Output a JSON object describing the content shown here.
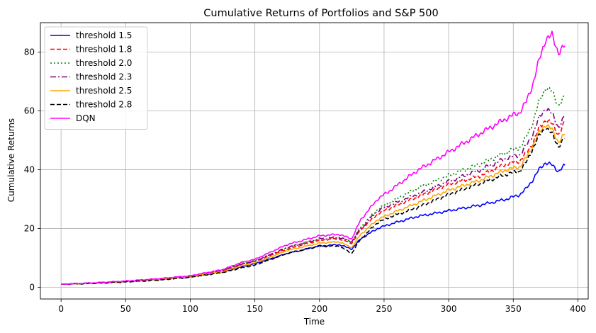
{
  "chart_data": {
    "type": "line",
    "title": "Cumulative Returns of Portfolios and S&P 500",
    "xlabel": "Time",
    "ylabel": "Cumulative Returns",
    "xlim": [
      -16,
      408
    ],
    "ylim": [
      -4,
      90
    ],
    "xticks": [
      0,
      50,
      100,
      150,
      200,
      250,
      300,
      350,
      400
    ],
    "yticks": [
      0,
      20,
      40,
      60,
      80
    ],
    "grid": true,
    "legend_position": "top-left",
    "series": [
      {
        "name": "threshold 1.5",
        "color": "#0000ff",
        "dash": "",
        "x": [
          0,
          25,
          50,
          75,
          100,
          125,
          140,
          150,
          175,
          200,
          215,
          225,
          232,
          245,
          255,
          275,
          300,
          325,
          345,
          355,
          360,
          365,
          370,
          375,
          380,
          385,
          390
        ],
        "y": [
          1,
          1.4,
          1.9,
          2.6,
          3.5,
          5.2,
          7.0,
          8.0,
          11.5,
          14.0,
          14.5,
          13.0,
          16.5,
          20.0,
          21.5,
          24.0,
          26.0,
          28.0,
          30.0,
          31.5,
          33.5,
          36.5,
          40.0,
          42.5,
          41.5,
          39.5,
          41.5
        ]
      },
      {
        "name": "threshold 1.8",
        "color": "#ff0000",
        "dash": "6,3",
        "x": [
          0,
          25,
          50,
          75,
          100,
          125,
          140,
          150,
          175,
          200,
          215,
          225,
          232,
          245,
          255,
          275,
          300,
          325,
          345,
          355,
          360,
          365,
          370,
          375,
          380,
          385,
          390
        ],
        "y": [
          1,
          1.4,
          2.0,
          2.7,
          3.7,
          5.6,
          7.8,
          8.8,
          13.0,
          16.0,
          16.5,
          15.0,
          19.5,
          25.0,
          27.0,
          30.5,
          35.0,
          38.0,
          42.0,
          43.0,
          45.5,
          49.0,
          54.0,
          57.0,
          55.5,
          52.0,
          56.0
        ]
      },
      {
        "name": "threshold 2.0",
        "color": "#008000",
        "dash": "2,3",
        "x": [
          0,
          25,
          50,
          75,
          100,
          125,
          140,
          150,
          175,
          200,
          215,
          225,
          232,
          245,
          255,
          275,
          300,
          325,
          345,
          355,
          360,
          365,
          370,
          375,
          380,
          385,
          390
        ],
        "y": [
          1,
          1.4,
          2.0,
          2.7,
          3.7,
          5.7,
          8.0,
          9.0,
          13.5,
          16.5,
          17.0,
          15.5,
          20.5,
          26.5,
          29.0,
          33.5,
          38.0,
          42.0,
          46.0,
          47.5,
          51.0,
          56.0,
          63.0,
          68.0,
          66.5,
          62.0,
          64.5
        ]
      },
      {
        "name": "threshold 2.3",
        "color": "#800080",
        "dash": "8,3,2,3",
        "x": [
          0,
          25,
          50,
          75,
          100,
          125,
          140,
          150,
          175,
          200,
          215,
          225,
          232,
          245,
          255,
          275,
          300,
          325,
          345,
          355,
          360,
          365,
          370,
          375,
          380,
          385,
          390
        ],
        "y": [
          1,
          1.4,
          2.0,
          2.7,
          3.7,
          5.6,
          7.9,
          8.9,
          13.5,
          16.5,
          17.0,
          15.5,
          20.0,
          26.0,
          28.0,
          31.5,
          36.0,
          40.0,
          44.0,
          45.0,
          48.0,
          52.0,
          57.5,
          61.0,
          59.0,
          54.5,
          58.0
        ]
      },
      {
        "name": "threshold 2.5",
        "color": "#ffa500",
        "dash": "",
        "x": [
          0,
          25,
          50,
          75,
          100,
          125,
          140,
          150,
          175,
          200,
          215,
          225,
          232,
          245,
          255,
          275,
          300,
          325,
          345,
          355,
          360,
          365,
          370,
          375,
          380,
          385,
          390
        ],
        "y": [
          1,
          1.4,
          1.9,
          2.6,
          3.6,
          5.3,
          7.3,
          8.3,
          12.5,
          15.0,
          15.5,
          13.5,
          18.0,
          23.0,
          25.0,
          28.5,
          33.0,
          36.5,
          40.0,
          41.0,
          44.0,
          48.0,
          52.5,
          55.5,
          53.5,
          49.5,
          52.0
        ]
      },
      {
        "name": "threshold 2.8",
        "color": "#000000",
        "dash": "6,3",
        "x": [
          0,
          25,
          50,
          75,
          100,
          125,
          140,
          150,
          175,
          200,
          215,
          225,
          232,
          245,
          255,
          275,
          300,
          325,
          345,
          355,
          360,
          365,
          370,
          375,
          380,
          385,
          390
        ],
        "y": [
          1,
          1.3,
          1.8,
          2.4,
          3.4,
          5.0,
          6.6,
          7.5,
          11.5,
          14.0,
          14.0,
          11.5,
          16.5,
          22.0,
          24.0,
          27.0,
          31.5,
          35.5,
          38.5,
          39.5,
          42.5,
          47.0,
          51.5,
          54.5,
          52.0,
          48.0,
          50.5
        ]
      },
      {
        "name": "DQN",
        "color": "#ff00ff",
        "dash": "",
        "x": [
          0,
          25,
          50,
          75,
          100,
          125,
          140,
          150,
          175,
          200,
          215,
          225,
          232,
          245,
          255,
          275,
          300,
          325,
          345,
          355,
          360,
          365,
          370,
          375,
          380,
          385,
          390
        ],
        "y": [
          1,
          1.5,
          2.1,
          2.9,
          3.9,
          6.0,
          8.5,
          9.5,
          14.5,
          17.5,
          18.0,
          16.5,
          23.0,
          30.0,
          33.0,
          39.5,
          46.0,
          52.5,
          57.5,
          59.5,
          63.0,
          69.0,
          77.0,
          84.5,
          85.5,
          80.0,
          82.0
        ]
      }
    ]
  }
}
